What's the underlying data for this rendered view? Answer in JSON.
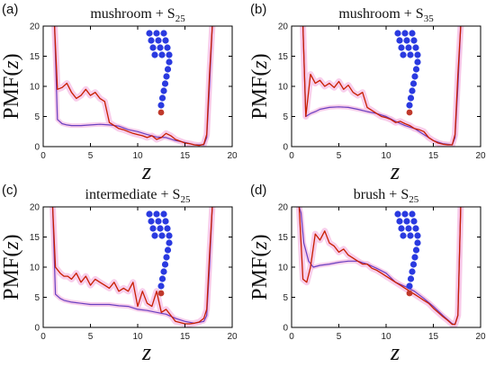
{
  "chart_data": [
    {
      "type": "line",
      "letter": "(a)",
      "title_main": "mushroom + S",
      "title_sub": "25",
      "ylabel_pre": "PMF(",
      "ylabel_var": "z",
      "ylabel_post": ")",
      "xlabel": "z",
      "xlim": [
        0,
        20
      ],
      "ylim": [
        0,
        20
      ],
      "xticks": [
        "0",
        "5",
        "10",
        "15",
        "20"
      ],
      "yticks": [
        "0",
        "5",
        "10",
        "15",
        "20"
      ],
      "colors": {
        "red": "#c81e00",
        "purple": "#6a3fc0",
        "band": "#f7c6e8"
      },
      "series": [
        {
          "x": [
            1.2,
            1.5,
            2.0,
            2.5,
            3.0,
            3.5,
            4.0,
            4.5,
            5.0,
            5.5,
            6.0,
            6.5,
            7.0,
            7.5,
            8.0,
            8.5,
            9.0,
            9.5,
            10.0,
            10.5,
            11.0,
            11.5,
            12.0,
            12.5,
            13.0,
            13.5,
            14.0,
            14.5,
            15.0,
            15.5,
            16.0,
            16.5,
            17.0,
            17.3,
            17.6,
            17.9
          ],
          "y": [
            20,
            9.5,
            9.8,
            10.5,
            9.0,
            8.0,
            8.5,
            9.5,
            8.5,
            9.0,
            8.0,
            7.5,
            4.0,
            3.5,
            3.0,
            2.8,
            2.5,
            2.2,
            2.0,
            1.8,
            1.5,
            1.8,
            1.2,
            1.5,
            2.2,
            1.8,
            1.2,
            0.9,
            0.6,
            0.5,
            0.3,
            0.2,
            0.4,
            2.0,
            12,
            20
          ]
        },
        {
          "x": [
            1.2,
            1.5,
            2.0,
            2.5,
            3.0,
            4.0,
            5.0,
            6.0,
            7.0,
            8.0,
            9.0,
            10.0,
            11.0,
            12.0,
            13.0,
            14.0,
            15.0,
            16.0,
            17.0,
            17.3,
            17.6,
            17.9
          ],
          "y": [
            20,
            4.5,
            3.8,
            3.6,
            3.5,
            3.5,
            3.6,
            3.7,
            3.6,
            3.4,
            2.8,
            2.5,
            2.0,
            1.6,
            1.5,
            1.0,
            0.7,
            0.3,
            0.3,
            1.5,
            10,
            20
          ]
        }
      ]
    },
    {
      "type": "line",
      "letter": "(b)",
      "title_main": "mushroom + S",
      "title_sub": "35",
      "ylabel_pre": "PMF(",
      "ylabel_var": "z",
      "ylabel_post": ")",
      "xlabel": "z",
      "xlim": [
        0,
        20
      ],
      "ylim": [
        0,
        20
      ],
      "xticks": [
        "0",
        "5",
        "10",
        "15",
        "20"
      ],
      "yticks": [
        "0",
        "5",
        "10",
        "15",
        "20"
      ],
      "colors": {
        "red": "#c81e00",
        "purple": "#6a3fc0",
        "band": "#f7c6e8"
      },
      "series": [
        {
          "x": [
            1.2,
            1.5,
            2.0,
            2.5,
            3.0,
            3.5,
            4.0,
            4.5,
            5.0,
            5.5,
            6.0,
            6.5,
            7.0,
            7.5,
            8.0,
            8.5,
            9.0,
            9.5,
            10.0,
            10.5,
            11.0,
            11.5,
            12.0,
            12.5,
            13.0,
            13.5,
            14.0,
            14.5,
            15.0,
            15.5,
            16.0,
            16.5,
            17.0,
            17.3,
            17.6,
            17.9
          ],
          "y": [
            20,
            5.0,
            12.0,
            10.5,
            11.0,
            10.0,
            10.5,
            9.8,
            10.8,
            9.5,
            10.2,
            9.0,
            8.5,
            9.0,
            6.5,
            6.0,
            5.5,
            5.0,
            4.8,
            4.5,
            4.0,
            4.2,
            3.8,
            3.5,
            3.0,
            2.8,
            2.5,
            1.5,
            1.0,
            0.6,
            0.4,
            0.3,
            0.3,
            2.0,
            12,
            20
          ]
        },
        {
          "x": [
            1.2,
            1.5,
            2.0,
            2.5,
            3.0,
            4.0,
            5.0,
            6.0,
            7.0,
            8.0,
            9.0,
            10.0,
            11.0,
            12.0,
            13.0,
            14.0,
            15.0,
            16.0,
            17.0,
            17.3,
            17.6,
            17.9
          ],
          "y": [
            20,
            5.0,
            5.5,
            5.8,
            6.2,
            6.5,
            6.6,
            6.5,
            6.2,
            5.8,
            5.5,
            5.0,
            4.2,
            3.5,
            3.0,
            2.0,
            1.0,
            0.5,
            0.3,
            1.5,
            10,
            20
          ]
        }
      ]
    },
    {
      "type": "line",
      "letter": "(c)",
      "title_main": "intermediate + S",
      "title_sub": "25",
      "ylabel_pre": "PMF(",
      "ylabel_var": "z",
      "ylabel_post": ")",
      "xlabel": "z",
      "xlim": [
        0,
        20
      ],
      "ylim": [
        0,
        20
      ],
      "xticks": [
        "0",
        "5",
        "10",
        "15",
        "20"
      ],
      "yticks": [
        "0",
        "5",
        "10",
        "15",
        "20"
      ],
      "colors": {
        "red": "#c81e00",
        "purple": "#6a3fc0",
        "band": "#f7c6e8"
      },
      "series": [
        {
          "x": [
            1.0,
            1.3,
            1.8,
            2.2,
            2.6,
            3.0,
            3.5,
            4.0,
            4.5,
            5.0,
            5.5,
            6.0,
            6.5,
            7.0,
            7.5,
            8.0,
            8.5,
            9.0,
            9.5,
            10.0,
            10.5,
            11.0,
            11.5,
            12.0,
            12.5,
            13.0,
            13.5,
            14.0,
            14.5,
            15.0,
            15.5,
            16.0,
            16.5,
            17.0,
            17.3,
            17.6,
            17.9
          ],
          "y": [
            20,
            10,
            9.0,
            8.5,
            8.5,
            8.0,
            9.0,
            7.5,
            8.5,
            7.0,
            8.0,
            7.5,
            7.0,
            6.5,
            7.5,
            6.0,
            6.5,
            6.0,
            7.5,
            3.5,
            6.0,
            4.0,
            3.5,
            6.0,
            2.5,
            3.0,
            2.0,
            1.0,
            0.8,
            0.6,
            0.6,
            0.7,
            0.9,
            1.5,
            3.0,
            12,
            20
          ]
        },
        {
          "x": [
            1.0,
            1.3,
            1.8,
            2.2,
            3.0,
            4.0,
            5.0,
            6.0,
            7.0,
            8.0,
            9.0,
            10.0,
            11.0,
            12.0,
            13.0,
            14.0,
            15.0,
            16.0,
            17.0,
            17.3,
            17.6,
            17.9
          ],
          "y": [
            20,
            5.5,
            4.8,
            4.5,
            4.2,
            4.0,
            3.8,
            3.8,
            3.8,
            3.6,
            3.5,
            3.0,
            2.8,
            2.5,
            2.2,
            1.5,
            1.0,
            0.7,
            1.0,
            2.0,
            10,
            20
          ]
        }
      ]
    },
    {
      "type": "line",
      "letter": "(d)",
      "title_main": "brush + S",
      "title_sub": "25",
      "ylabel_pre": "PMF(",
      "ylabel_var": "z",
      "ylabel_post": ")",
      "xlabel": "z",
      "xlim": [
        0,
        20
      ],
      "ylim": [
        0,
        20
      ],
      "xticks": [
        "0",
        "5",
        "10",
        "15",
        "20"
      ],
      "yticks": [
        "0",
        "5",
        "10",
        "15",
        "20"
      ],
      "colors": {
        "red": "#c81e00",
        "purple": "#6a3fc0",
        "band": "#f7c6e8"
      },
      "series": [
        {
          "x": [
            0.8,
            1.2,
            1.6,
            2.0,
            2.5,
            3.0,
            3.5,
            4.0,
            4.5,
            5.0,
            5.5,
            6.0,
            6.5,
            7.0,
            7.5,
            8.0,
            8.5,
            9.0,
            9.5,
            10.0,
            10.5,
            11.0,
            11.5,
            12.0,
            12.5,
            13.0,
            13.5,
            14.0,
            14.5,
            15.0,
            15.5,
            16.0,
            16.5,
            17.0,
            17.3,
            17.6,
            17.9
          ],
          "y": [
            20,
            8.0,
            7.5,
            10.0,
            15.5,
            14.5,
            16.0,
            14.0,
            13.5,
            12.5,
            13.0,
            12.0,
            11.5,
            11.0,
            10.5,
            10.5,
            9.8,
            9.5,
            9.0,
            8.5,
            8.0,
            7.5,
            7.0,
            6.5,
            6.0,
            5.5,
            5.0,
            4.5,
            4.0,
            3.2,
            2.5,
            1.8,
            1.2,
            0.5,
            0.5,
            2.0,
            20
          ]
        },
        {
          "x": [
            0.8,
            1.0,
            1.3,
            1.8,
            2.3,
            3.0,
            4.0,
            5.0,
            6.0,
            7.0,
            8.0,
            9.0,
            10.0,
            11.0,
            12.0,
            13.0,
            14.0,
            15.0,
            16.0,
            17.0,
            17.3,
            17.6,
            17.9
          ],
          "y": [
            20,
            19.0,
            14.0,
            11.0,
            10.0,
            10.3,
            10.5,
            10.8,
            11.0,
            11.0,
            10.5,
            9.8,
            9.0,
            7.5,
            6.8,
            6.0,
            4.8,
            3.5,
            2.0,
            0.6,
            0.5,
            2.0,
            20
          ]
        }
      ]
    }
  ]
}
